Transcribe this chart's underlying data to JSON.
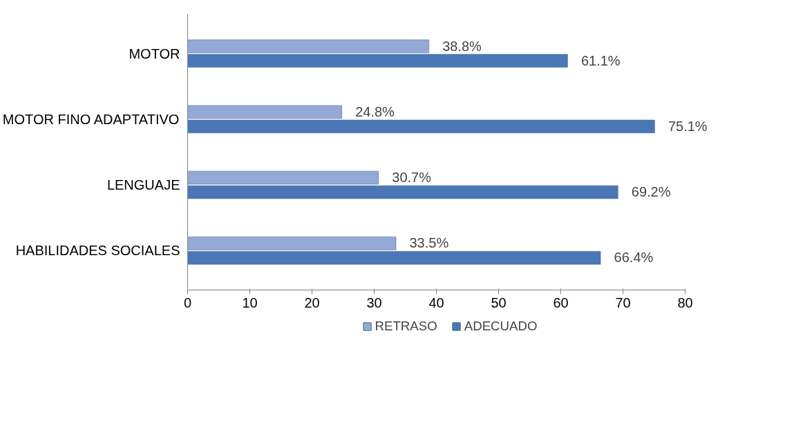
{
  "chart_data": {
    "type": "bar",
    "orientation": "horizontal",
    "categories": [
      "MOTOR",
      "MOTOR FINO ADAPTATIVO",
      "LENGUAJE",
      "HABILIDADES SOCIALES"
    ],
    "series": [
      {
        "name": "RETRASO",
        "color": "#95a9d6",
        "values": [
          38.8,
          24.8,
          30.7,
          33.5
        ],
        "value_labels": [
          "38.8%",
          "24.8%",
          "30.7%",
          "33.5%"
        ]
      },
      {
        "name": "ADECUADO",
        "color": "#4a78b6",
        "values": [
          61.1,
          75.1,
          69.2,
          66.4
        ],
        "value_labels": [
          "61.1%",
          "75.1%",
          "69.2%",
          "66.4%"
        ]
      }
    ],
    "xlim": [
      0,
      80
    ],
    "xticks": [
      0,
      10,
      20,
      30,
      40,
      50,
      60,
      70,
      80
    ],
    "grid": false,
    "legend": "bottom"
  }
}
